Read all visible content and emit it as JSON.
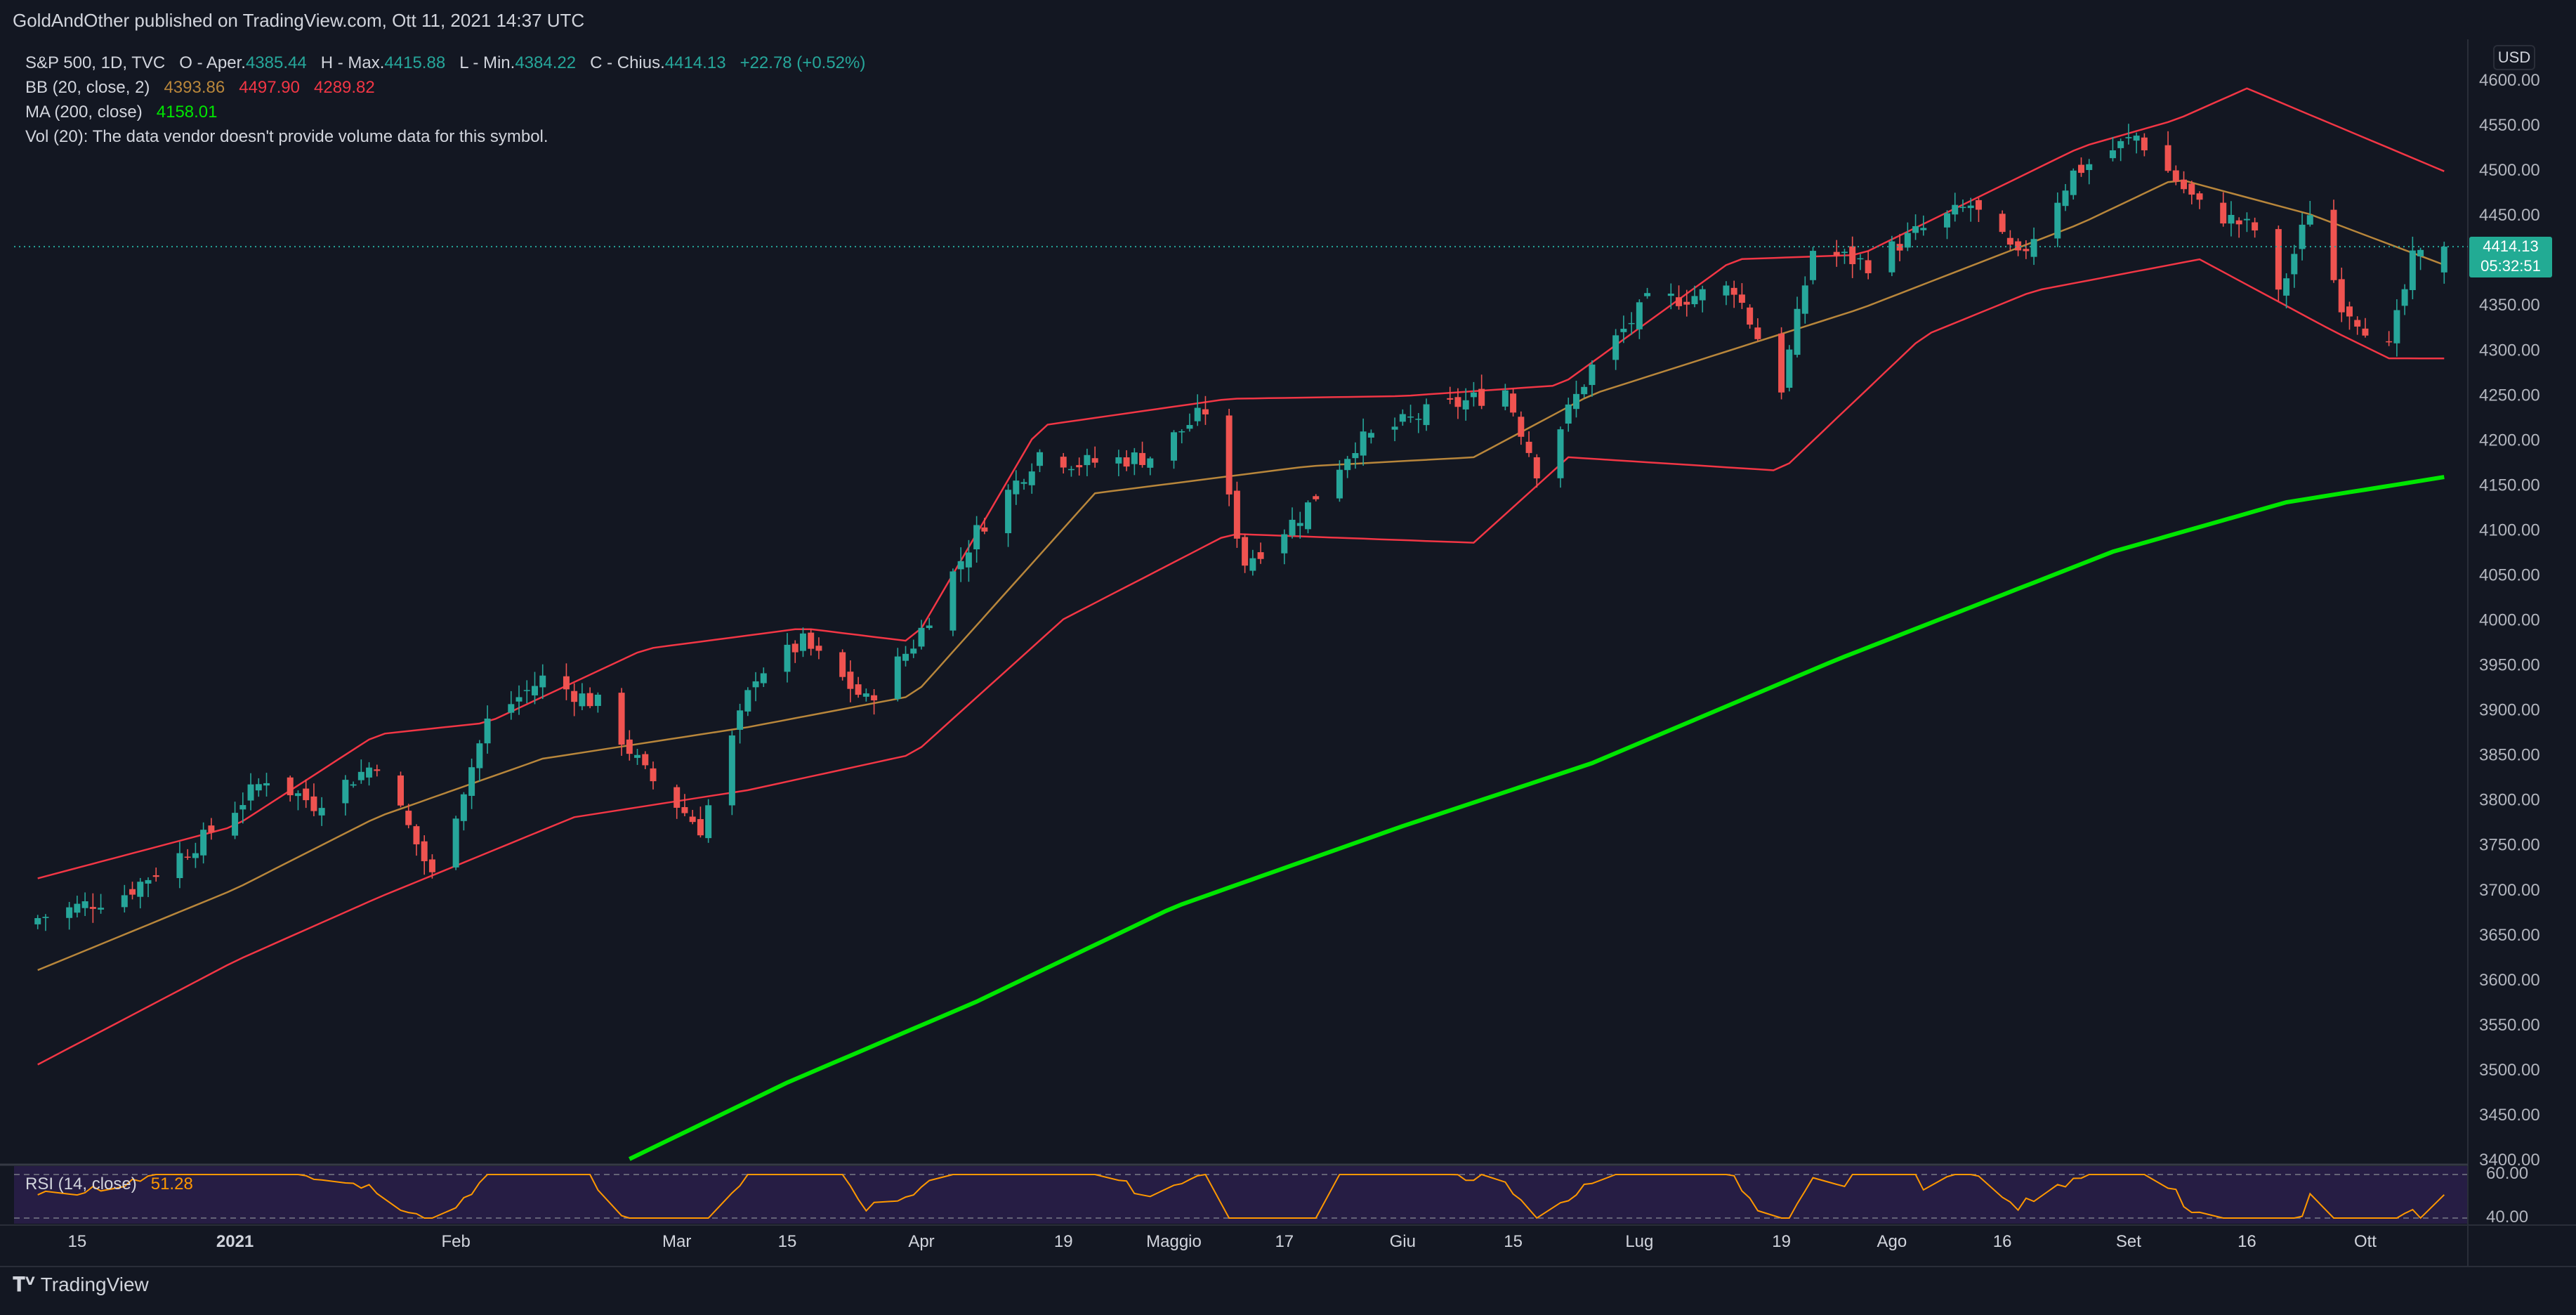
{
  "header": {
    "published_line": "GoldAndOther published on TradingView.com, Ott 11, 2021 14:37 UTC"
  },
  "legend": {
    "symbol": "S&P 500, 1D, TVC",
    "open_label": "O - Aper.",
    "open": "4385.44",
    "high_label": "H - Max.",
    "high": "4415.88",
    "low_label": "L - Min.",
    "low": "4384.22",
    "close_label": "C - Chius.",
    "close": "4414.13",
    "change": "+22.78 (+0.52%)",
    "bb_label": "BB (20, close, 2)",
    "bb_basis": "4393.86",
    "bb_upper": "4497.90",
    "bb_lower": "4289.82",
    "ma_label": "MA (200, close)",
    "ma_value": "4158.01",
    "vol_text": "Vol (20): The data vendor doesn't provide volume data for this symbol.",
    "rsi_label": "RSI (14, close)",
    "rsi_value": "51.28"
  },
  "price_scale": {
    "currency_button": "USD",
    "last_price": "4414.13",
    "countdown": "05:32:51"
  },
  "footer": {
    "brand": "TradingView",
    "brand_icon": "tradingview-logo-icon"
  },
  "colors": {
    "background": "#131722",
    "grid": "#2a2e39",
    "up": "#26a69a",
    "down": "#ef5350",
    "bb_band": "#f23645",
    "bb_basis": "#b8863b",
    "ma200": "#00e600",
    "rsi_line": "#ff9800",
    "rsi_fill": "#2a1f4a"
  },
  "chart_data": [
    {
      "type": "candlestick",
      "symbol": "S&P 500",
      "interval": "1D",
      "yaxis": {
        "min": 3400,
        "max": 4600,
        "ticks": [
          "4600.00",
          "4550.00",
          "4500.00",
          "4450.00",
          "4400.00",
          "4350.00",
          "4300.00",
          "4250.00",
          "4200.00",
          "4150.00",
          "4100.00",
          "4050.00",
          "4000.00",
          "3950.00",
          "3900.00",
          "3850.00",
          "3800.00",
          "3750.00",
          "3700.00",
          "3650.00",
          "3600.00",
          "3550.00",
          "3500.00",
          "3450.00",
          "3400.00"
        ]
      },
      "xaxis": {
        "ticks": [
          {
            "label": "15",
            "date": "2020-12-15"
          },
          {
            "label": "2021",
            "date": "2021-01-04"
          },
          {
            "label": "Feb",
            "date": "2021-02-01"
          },
          {
            "label": "Mar",
            "date": "2021-03-01"
          },
          {
            "label": "15",
            "date": "2021-03-15"
          },
          {
            "label": "Apr",
            "date": "2021-04-01"
          },
          {
            "label": "19",
            "date": "2021-04-19"
          },
          {
            "label": "Maggio",
            "date": "2021-05-03"
          },
          {
            "label": "17",
            "date": "2021-05-17"
          },
          {
            "label": "Giu",
            "date": "2021-06-01"
          },
          {
            "label": "15",
            "date": "2021-06-15"
          },
          {
            "label": "Lug",
            "date": "2021-07-01"
          },
          {
            "label": "19",
            "date": "2021-07-19"
          },
          {
            "label": "Ago",
            "date": "2021-08-02"
          },
          {
            "label": "16",
            "date": "2021-08-16"
          },
          {
            "label": "Set",
            "date": "2021-09-01"
          },
          {
            "label": "16",
            "date": "2021-09-16"
          },
          {
            "label": "Ott",
            "date": "2021-10-01"
          }
        ]
      },
      "close_anchors": [
        [
          "2020-12-10",
          3668
        ],
        [
          "2020-12-21",
          3695
        ],
        [
          "2020-12-31",
          3756
        ],
        [
          "2021-01-08",
          3824
        ],
        [
          "2021-01-14",
          3795
        ],
        [
          "2021-01-22",
          3841
        ],
        [
          "2021-01-29",
          3714
        ],
        [
          "2021-02-05",
          3886
        ],
        [
          "2021-02-12",
          3934
        ],
        [
          "2021-02-19",
          3906
        ],
        [
          "2021-02-25",
          3829
        ],
        [
          "2021-03-04",
          3768
        ],
        [
          "2021-03-11",
          3939
        ],
        [
          "2021-03-17",
          3974
        ],
        [
          "2021-03-25",
          3909
        ],
        [
          "2021-03-31",
          3973
        ],
        [
          "2021-04-08",
          4097
        ],
        [
          "2021-04-16",
          4185
        ],
        [
          "2021-04-21",
          4173
        ],
        [
          "2021-04-30",
          4181
        ],
        [
          "2021-05-07",
          4232
        ],
        [
          "2021-05-12",
          4063
        ],
        [
          "2021-05-19",
          4115
        ],
        [
          "2021-05-26",
          4195
        ],
        [
          "2021-06-04",
          4229
        ],
        [
          "2021-06-14",
          4255
        ],
        [
          "2021-06-18",
          4166
        ],
        [
          "2021-06-25",
          4280
        ],
        [
          "2021-07-02",
          4352
        ],
        [
          "2021-07-07",
          4358
        ],
        [
          "2021-07-13",
          4369
        ],
        [
          "2021-07-19",
          4258
        ],
        [
          "2021-07-23",
          4411
        ],
        [
          "2021-07-30",
          4395
        ],
        [
          "2021-08-05",
          4429
        ],
        [
          "2021-08-12",
          4460
        ],
        [
          "2021-08-18",
          4400
        ],
        [
          "2021-08-25",
          4496
        ],
        [
          "2021-09-02",
          4537
        ],
        [
          "2021-09-10",
          4459
        ],
        [
          "2021-09-17",
          4433
        ],
        [
          "2021-09-20",
          4358
        ],
        [
          "2021-09-24",
          4455
        ],
        [
          "2021-09-28",
          4352
        ],
        [
          "2021-10-04",
          4300
        ],
        [
          "2021-10-07",
          4399
        ],
        [
          "2021-10-11",
          4414
        ]
      ],
      "bollinger": {
        "period": 20,
        "upper_anchors": [
          [
            "2020-12-10",
            3712
          ],
          [
            "2021-01-04",
            3770
          ],
          [
            "2021-01-22",
            3872
          ],
          [
            "2021-02-05",
            3885
          ],
          [
            "2021-02-25",
            3967
          ],
          [
            "2021-03-17",
            3990
          ],
          [
            "2021-03-31",
            3975
          ],
          [
            "2021-04-16",
            4215
          ],
          [
            "2021-05-10",
            4245
          ],
          [
            "2021-06-01",
            4248
          ],
          [
            "2021-06-21",
            4260
          ],
          [
            "2021-07-13",
            4400
          ],
          [
            "2021-07-29",
            4405
          ],
          [
            "2021-08-26",
            4525
          ],
          [
            "2021-09-07",
            4555
          ],
          [
            "2021-09-16",
            4590
          ],
          [
            "2021-10-11",
            4497.9
          ]
        ],
        "basis_anchors": [
          [
            "2020-12-10",
            3610
          ],
          [
            "2021-01-04",
            3700
          ],
          [
            "2021-01-22",
            3780
          ],
          [
            "2021-02-12",
            3845
          ],
          [
            "2021-03-10",
            3880
          ],
          [
            "2021-03-31",
            3915
          ],
          [
            "2021-04-23",
            4140
          ],
          [
            "2021-05-20",
            4170
          ],
          [
            "2021-06-10",
            4180
          ],
          [
            "2021-06-25",
            4250
          ],
          [
            "2021-07-29",
            4345
          ],
          [
            "2021-08-26",
            4440
          ],
          [
            "2021-09-07",
            4490
          ],
          [
            "2021-09-24",
            4450
          ],
          [
            "2021-10-11",
            4393.86
          ]
        ],
        "lower_anchors": [
          [
            "2020-12-10",
            3505
          ],
          [
            "2021-01-04",
            3620
          ],
          [
            "2021-01-22",
            3690
          ],
          [
            "2021-02-16",
            3780
          ],
          [
            "2021-03-10",
            3810
          ],
          [
            "2021-03-31",
            3850
          ],
          [
            "2021-04-19",
            4000
          ],
          [
            "2021-05-10",
            4095
          ],
          [
            "2021-06-10",
            4085
          ],
          [
            "2021-06-22",
            4180
          ],
          [
            "2021-07-19",
            4165
          ],
          [
            "2021-08-06",
            4315
          ],
          [
            "2021-08-20",
            4365
          ],
          [
            "2021-09-10",
            4400
          ],
          [
            "2021-09-27",
            4320
          ],
          [
            "2021-10-04",
            4290
          ],
          [
            "2021-10-11",
            4289.82
          ]
        ]
      },
      "moving_average": {
        "period": 200,
        "anchors": [
          [
            "2021-02-23",
            3400
          ],
          [
            "2021-03-15",
            3485
          ],
          [
            "2021-04-08",
            3575
          ],
          [
            "2021-05-03",
            3680
          ],
          [
            "2021-06-01",
            3770
          ],
          [
            "2021-06-25",
            3840
          ],
          [
            "2021-07-26",
            3955
          ],
          [
            "2021-08-30",
            4075
          ],
          [
            "2021-09-21",
            4130
          ],
          [
            "2021-10-11",
            4158.01
          ]
        ]
      },
      "last_price": 4414.13
    },
    {
      "type": "line",
      "title": "RSI (14, close)",
      "yaxis": {
        "min": 30,
        "max": 70,
        "ticks": [
          "60.00",
          "40.00"
        ],
        "bands": [
          70,
          30
        ]
      },
      "series": [
        {
          "name": "RSI (14, close)",
          "last": 51.28
        }
      ]
    }
  ]
}
